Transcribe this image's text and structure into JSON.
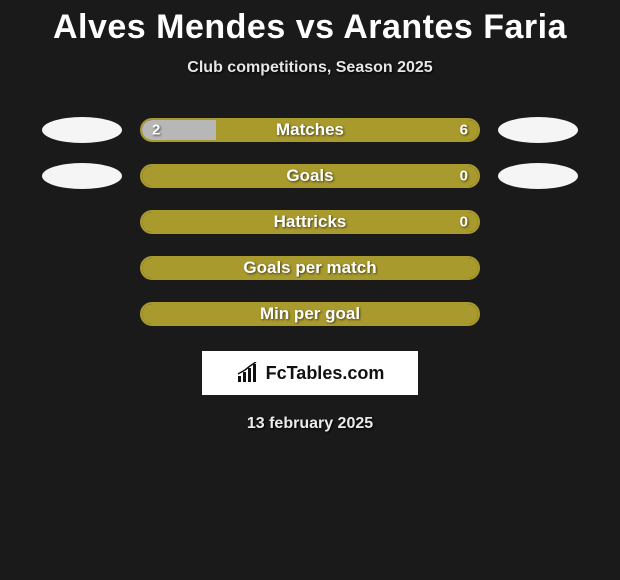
{
  "title": "Alves Mendes vs Arantes Faria",
  "subtitle": "Club competitions, Season 2025",
  "footer_date": "13 february 2025",
  "logo_text": "FcTables.com",
  "colors": {
    "background": "#1a1a1a",
    "title_color": "#ffffff",
    "subtitle_color": "#e6e6e6",
    "bar_fill": "#a99a2e",
    "bar_border": "#a99a2e",
    "left_segment": "#b7b7b7",
    "avatar_bg": "#f5f5f5",
    "label_color": "#ffffff"
  },
  "stats": [
    {
      "label": "Matches",
      "left_value": "2",
      "right_value": "6",
      "left_pct": 22,
      "right_pct": 78,
      "show_values": true,
      "show_left_avatar": true,
      "show_right_avatar": true
    },
    {
      "label": "Goals",
      "left_value": "",
      "right_value": "0",
      "left_pct": 0,
      "right_pct": 100,
      "show_values": true,
      "show_left_avatar": true,
      "show_right_avatar": true
    },
    {
      "label": "Hattricks",
      "left_value": "",
      "right_value": "0",
      "left_pct": 0,
      "right_pct": 100,
      "show_values": true,
      "show_left_avatar": false,
      "show_right_avatar": false
    },
    {
      "label": "Goals per match",
      "left_value": "",
      "right_value": "",
      "left_pct": 0,
      "right_pct": 100,
      "show_values": false,
      "show_left_avatar": false,
      "show_right_avatar": false
    },
    {
      "label": "Min per goal",
      "left_value": "",
      "right_value": "",
      "left_pct": 0,
      "right_pct": 100,
      "show_values": false,
      "show_left_avatar": false,
      "show_right_avatar": false
    }
  ],
  "chart_style": {
    "bar_track_width": 340,
    "bar_track_height": 24,
    "bar_border_radius": 12,
    "bar_border_width": 2,
    "label_fontsize": 17,
    "value_fontsize": 15,
    "title_fontsize": 34,
    "subtitle_fontsize": 16,
    "footer_fontsize": 16
  }
}
